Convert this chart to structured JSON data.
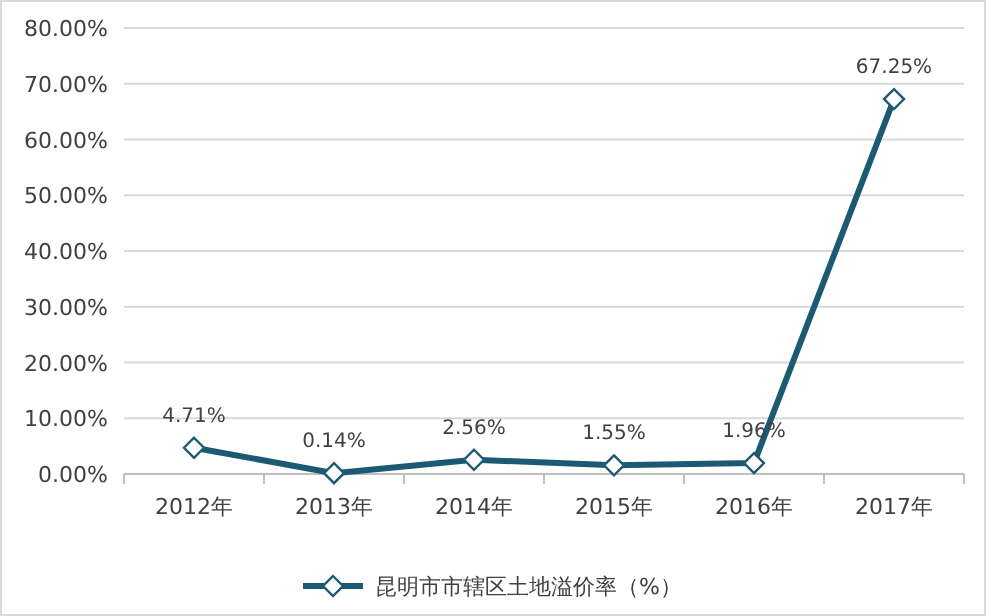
{
  "chart_data": {
    "type": "line",
    "categories": [
      "2012年",
      "2013年",
      "2014年",
      "2015年",
      "2016年",
      "2017年"
    ],
    "series": [
      {
        "name": "昆明市市辖区土地溢价率（%）",
        "color": "#1b5a72",
        "values": [
          4.71,
          0.14,
          2.56,
          1.55,
          1.96,
          67.25
        ],
        "value_labels": [
          "4.71%",
          "0.14%",
          "2.56%",
          "1.55%",
          "1.96%",
          "67.25%"
        ]
      }
    ],
    "ylim": [
      0,
      80
    ],
    "yticks": [
      {
        "value": 0,
        "label": "0.00%"
      },
      {
        "value": 10,
        "label": "10.00%"
      },
      {
        "value": 20,
        "label": "20.00%"
      },
      {
        "value": 30,
        "label": "30.00%"
      },
      {
        "value": 40,
        "label": "40.00%"
      },
      {
        "value": 50,
        "label": "50.00%"
      },
      {
        "value": 60,
        "label": "60.00%"
      },
      {
        "value": 70,
        "label": "70.00%"
      },
      {
        "value": 80,
        "label": "80.00%"
      }
    ],
    "grid": "y",
    "legend": "bottom",
    "marker": "diamond",
    "line_style": "solid"
  }
}
